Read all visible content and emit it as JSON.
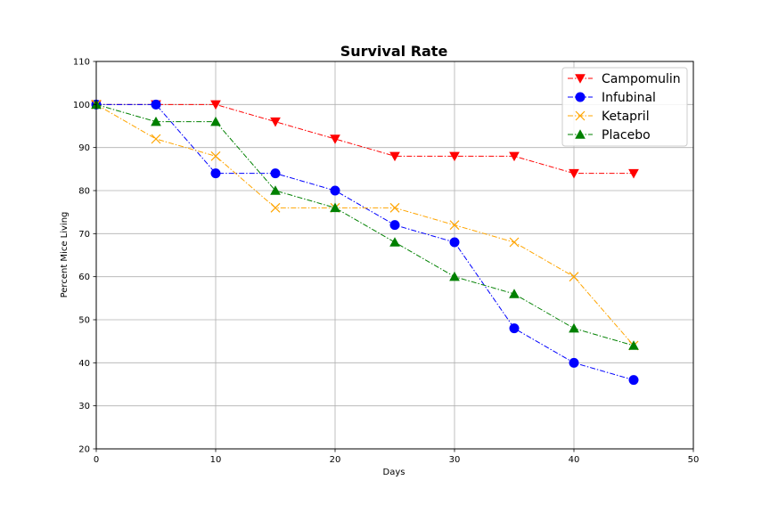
{
  "chart_data": {
    "type": "line",
    "title": "Survival Rate",
    "xlabel": "Days",
    "ylabel": "Percent Mice Living",
    "xlim": [
      0,
      50
    ],
    "ylim": [
      20,
      110
    ],
    "xticks": [
      0,
      10,
      20,
      30,
      40,
      50
    ],
    "yticks": [
      20,
      30,
      40,
      50,
      60,
      70,
      80,
      90,
      100,
      110
    ],
    "grid": true,
    "legend_position": "top-right",
    "x": [
      0,
      5,
      10,
      15,
      20,
      25,
      30,
      35,
      40,
      45
    ],
    "series": [
      {
        "name": "Campomulin",
        "color": "#ff0000",
        "marker": "triangle-down",
        "values": [
          100,
          100,
          100,
          96,
          92,
          88,
          88,
          88,
          84,
          84
        ]
      },
      {
        "name": "Infubinal",
        "color": "#0000ff",
        "marker": "circle",
        "values": [
          100,
          100,
          84,
          84,
          80,
          72,
          68,
          48,
          40,
          36
        ]
      },
      {
        "name": "Ketapril",
        "color": "#ffa500",
        "marker": "x",
        "values": [
          100,
          92,
          88,
          76,
          76,
          76,
          72,
          68,
          60,
          44
        ]
      },
      {
        "name": "Placebo",
        "color": "#008000",
        "marker": "triangle-up",
        "values": [
          100,
          96,
          96,
          80,
          76,
          68,
          60,
          56,
          48,
          44
        ]
      }
    ]
  }
}
